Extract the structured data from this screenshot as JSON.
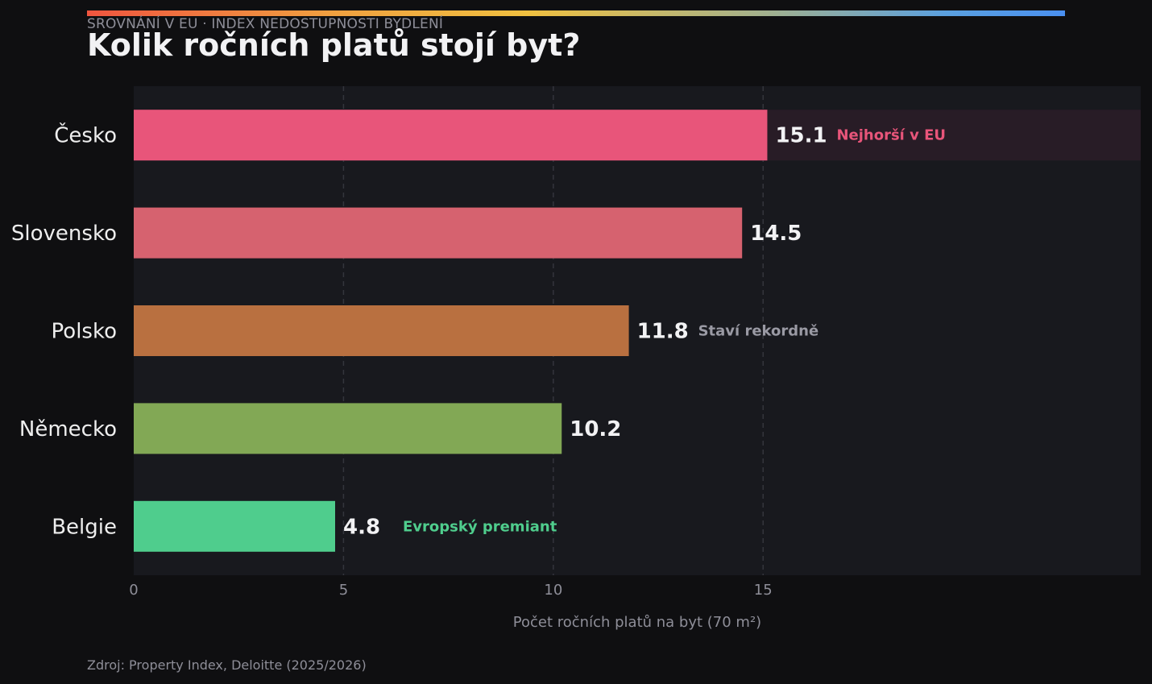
{
  "header": {
    "kicker": "SROVNÁNÍ V EU · INDEX NEDOSTUPNOSTI BYDLENÍ",
    "title": "Kolik ročních platů stojí byt?"
  },
  "footer": {
    "source": "Zdroj: Property Index, Deloitte (2025/2026)"
  },
  "colors": {
    "background": "#0f0f11",
    "plot_background": "#18191e",
    "highlight_row": "#281c26",
    "grid": "#34353c"
  },
  "chart_data": {
    "type": "bar",
    "orientation": "horizontal",
    "title": "Kolik ročních platů stojí byt?",
    "xlabel": "Počet ročních platů na byt (70 m²)",
    "ylabel": "",
    "xlim": [
      0,
      24
    ],
    "xticks": [
      0,
      5,
      10,
      15
    ],
    "grid": true,
    "categories": [
      "Česko",
      "Slovensko",
      "Polsko",
      "Německo",
      "Belgie"
    ],
    "values": [
      15.1,
      14.5,
      11.8,
      10.2,
      4.8
    ],
    "value_labels": [
      "15.1",
      "14.5",
      "11.8",
      "10.2",
      "4.8"
    ],
    "bar_colors": [
      "#e8557a",
      "#d6626f",
      "#b97040",
      "#82a855",
      "#4fcd8d"
    ],
    "annotations": [
      {
        "category": "Česko",
        "text": "Nejhorší v EU",
        "color": "#e8557a",
        "highlight": true
      },
      {
        "category": "Polsko",
        "text": "Staví rekordně",
        "color": "#9a9aa4"
      },
      {
        "category": "Belgie",
        "text": "Evropský premiant",
        "color": "#4fcd8d"
      }
    ]
  }
}
